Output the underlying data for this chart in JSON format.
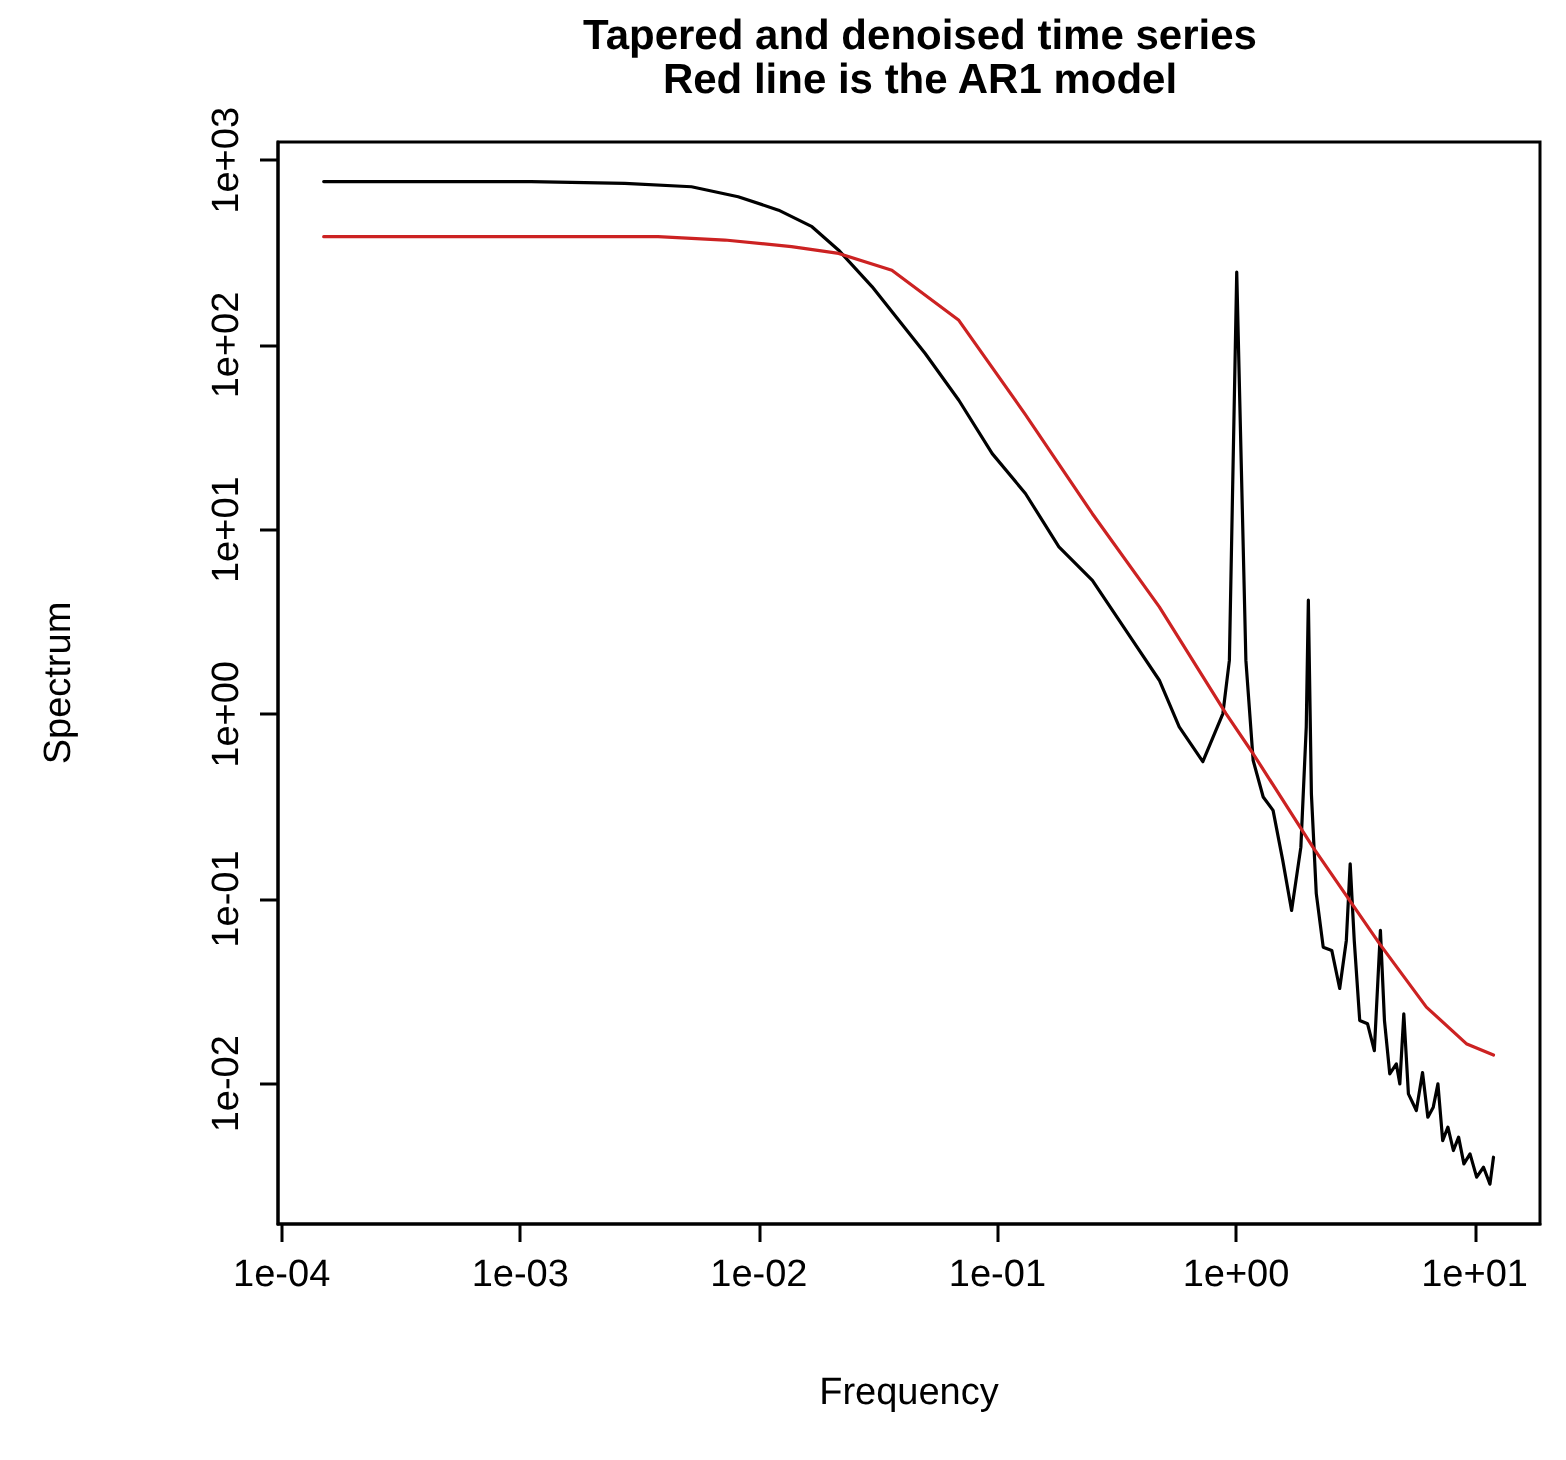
{
  "chart_data": {
    "type": "line",
    "title": "Tapered and denoised time series\nRed line is the AR1 model",
    "xlabel": "Frequency",
    "ylabel": "Spectrum",
    "log": "xy",
    "grid": false,
    "marker": "none",
    "line_style": "solid",
    "xlim": [
      9.65e-05,
      18.8
    ],
    "ylim": [
      0.00174,
      1256
    ],
    "xticks": [
      {
        "value": 0.0001,
        "label": "1e-04"
      },
      {
        "value": 0.001,
        "label": "1e-03"
      },
      {
        "value": 0.01,
        "label": "1e-02"
      },
      {
        "value": 0.1,
        "label": "1e-01"
      },
      {
        "value": 1,
        "label": "1e+00"
      },
      {
        "value": 10,
        "label": "1e+01"
      }
    ],
    "yticks": [
      {
        "value": 0.01,
        "label": "1e-02"
      },
      {
        "value": 0.1,
        "label": "1e-01"
      },
      {
        "value": 1,
        "label": "1e+00"
      },
      {
        "value": 10,
        "label": "1e+01"
      },
      {
        "value": 100,
        "label": "1e+02"
      },
      {
        "value": 1000,
        "label": "1e+03"
      }
    ],
    "series": [
      {
        "color": "#000000",
        "x": [
          0.00015,
          0.00111,
          0.00274,
          0.00522,
          0.00819,
          0.0121,
          0.0167,
          0.0216,
          0.0298,
          0.0498,
          0.0689,
          0.0951,
          0.131,
          0.181,
          0.25,
          0.368,
          0.477,
          0.578,
          0.726,
          0.881,
          0.938,
          1.007,
          1.1,
          1.18,
          1.3,
          1.43,
          1.57,
          1.71,
          1.87,
          1.97,
          2.01,
          2.07,
          2.17,
          2.32,
          2.52,
          2.72,
          2.9,
          3.01,
          3.13,
          3.3,
          3.56,
          3.8,
          4.03,
          4.19,
          4.41,
          4.7,
          4.86,
          5.05,
          5.28,
          5.7,
          6.05,
          6.37,
          6.71,
          7.02,
          7.35,
          7.73,
          8.15,
          8.57,
          9.02,
          9.57,
          10.2,
          10.9,
          11.6,
          12.0
        ],
        "values": [
          767,
          767,
          749,
          719,
          635,
          537,
          437,
          326,
          207,
          89.9,
          50.2,
          25.8,
          15.7,
          8.07,
          5.32,
          2.52,
          1.53,
          0.855,
          0.554,
          1.01,
          1.96,
          248,
          1.96,
          0.563,
          0.357,
          0.302,
          0.162,
          0.0867,
          0.191,
          0.855,
          4.15,
          0.371,
          0.107,
          0.0549,
          0.0527,
          0.0328,
          0.0597,
          0.155,
          0.0597,
          0.022,
          0.0211,
          0.0151,
          0.0676,
          0.022,
          0.0113,
          0.0128,
          0.00998,
          0.0239,
          0.00881,
          0.00716,
          0.0115,
          0.00659,
          0.00747,
          0.00998,
          0.00492,
          0.00582,
          0.00435,
          0.00514,
          0.00368,
          0.00417,
          0.00312,
          0.00353,
          0.00286,
          0.004
        ]
      },
      {
        "color": "#cc2222",
        "x": [
          0.00015,
          0.00378,
          0.0072,
          0.0137,
          0.0216,
          0.0361,
          0.0689,
          0.131,
          0.25,
          0.477,
          0.908,
          1.18,
          2.1,
          4.0,
          6.28,
          9.28,
          12.0
        ],
        "values": [
          386,
          386,
          370,
          341,
          313,
          254,
          136,
          42,
          12.2,
          3.82,
          1.01,
          0.612,
          0.191,
          0.0572,
          0.026,
          0.0164,
          0.0143
        ]
      }
    ]
  }
}
